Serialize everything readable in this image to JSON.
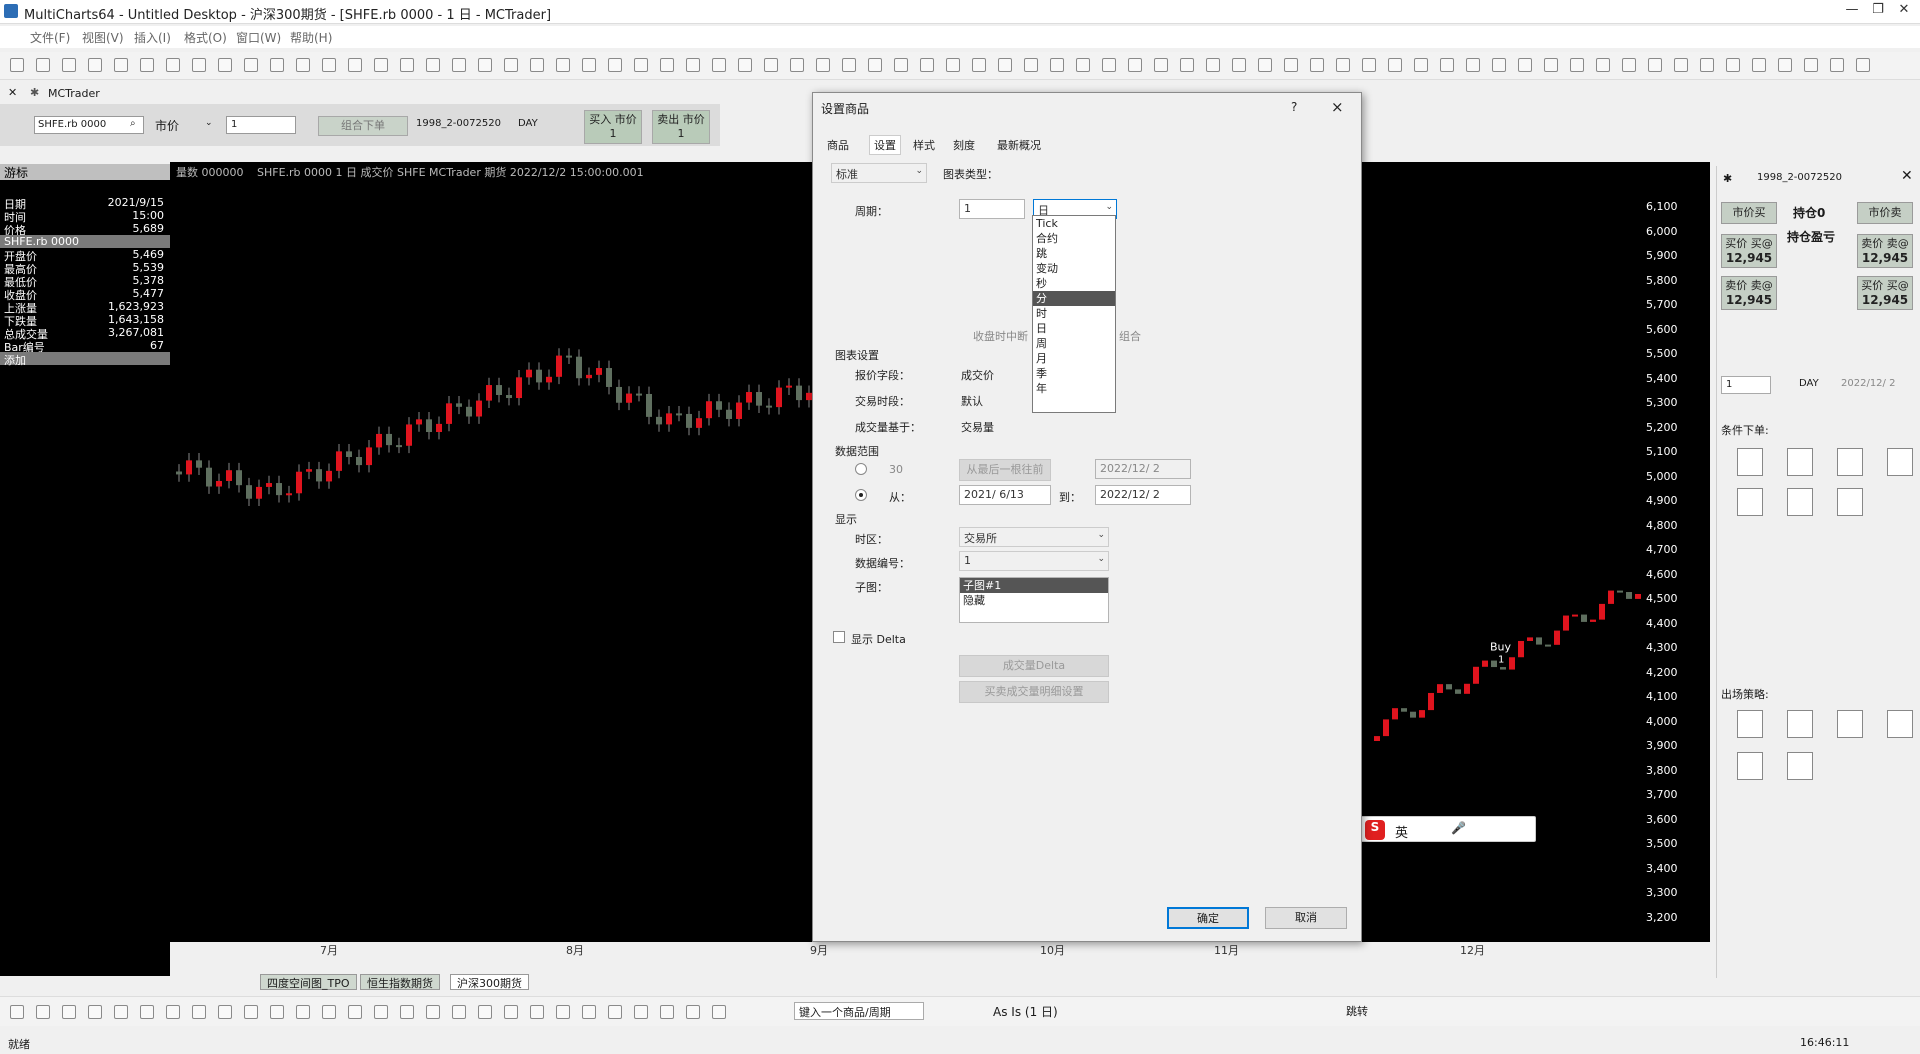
{
  "window": {
    "title": "MultiCharts64 - Untitled Desktop - 沪深300期货 - [SHFE.rb 0000 - 1 日 - MCTrader]"
  },
  "menu": [
    "文件(F)",
    "视图(V)",
    "插入(I)",
    "格式(O)",
    "窗口(W)",
    "帮助(H)"
  ],
  "tab": {
    "label": "MCTrader"
  },
  "trader": {
    "symbol": "SHFE.rb 0000",
    "order_type": "市价",
    "qty": "1",
    "order_btn": "组合下单",
    "account": "1998_2-0072520",
    "tif": "DAY",
    "buy_label": "买入 市价",
    "buy_qty": "1",
    "sell_label": "卖出 市价",
    "sell_qty": "1"
  },
  "left_panel": {
    "title": "游标",
    "rows": [
      {
        "k": "日期",
        "v": "2021/9/15"
      },
      {
        "k": "时间",
        "v": "15:00"
      },
      {
        "k": "价格",
        "v": "5,689"
      }
    ],
    "symbol_row": "SHFE.rb 0000",
    "rows2": [
      {
        "k": "开盘价",
        "v": "5,469"
      },
      {
        "k": "最高价",
        "v": "5,539"
      },
      {
        "k": "最低价",
        "v": "5,378"
      },
      {
        "k": "收盘价",
        "v": "5,477"
      },
      {
        "k": "上涨量",
        "v": "1,623,923"
      },
      {
        "k": "下跌量",
        "v": "1,643,158"
      },
      {
        "k": "总成交量",
        "v": "3,267,081"
      },
      {
        "k": "Bar编号",
        "v": "67"
      }
    ],
    "footer": "添加"
  },
  "chart": {
    "info": "SHFE.rb 0000  1 日  成交价  SHFE  MCTrader  期货  2022/12/2  15:00:00.001",
    "info_vol": "量数 000000",
    "y_ticks": [
      "6,100",
      "6,000",
      "5,900",
      "5,800",
      "5,700",
      "5,600",
      "5,500",
      "5,400",
      "5,300",
      "5,200",
      "5,100",
      "5,000",
      "4,900",
      "4,800",
      "4,700",
      "4,600",
      "4,500",
      "4,400",
      "4,300",
      "4,200",
      "4,100",
      "4,000",
      "3,900",
      "3,800",
      "3,700",
      "3,600",
      "3,500",
      "3,400",
      "3,300",
      "3,200"
    ],
    "x_ticks": [
      "7月",
      "8月",
      "9月",
      "10月",
      "11月",
      "12月"
    ],
    "marker_label": "Buy",
    "marker_qty": "1",
    "up_color": "#e0141e",
    "down_color": "#5f6f5f"
  },
  "bottom_tabs": [
    "四度空间图_TPO",
    "恒生指数期货",
    "沪深300期货"
  ],
  "drawbar": {
    "symbol_input": "键入一个商品/周期",
    "as_is": "As Is (1 日)",
    "jump": "跳转"
  },
  "status": {
    "left": "就绪",
    "time": "16:46:11"
  },
  "dialog": {
    "title": "设置商品",
    "help": "?",
    "close": "×",
    "tabs": [
      "商品",
      "设置",
      "样式",
      "刻度",
      "最新概况"
    ],
    "standard": "标准",
    "chart_type_label": "图表类型：",
    "period_label": "周期：",
    "period_value": "1",
    "period_unit": "日",
    "dropdown_options": [
      "Tick",
      "合约",
      "跳",
      "变动",
      "秒",
      "分",
      "时",
      "日",
      "周",
      "月",
      "季",
      "年"
    ],
    "dropdown_selected": 5,
    "hidden_text_1": "收盘时中断",
    "hidden_text_2": "组合",
    "chart_settings": "图表设置",
    "quote_field_label": "报价字段：",
    "quote_field_value": "成交价",
    "session_label": "交易时段：",
    "session_value": "默认",
    "volume_label": "成交量基于：",
    "volume_value": "交易量",
    "range_title": "数据范围",
    "range_30": "30",
    "range_bars_btn": "从最后一根往前",
    "range_date_dis": "2022/12/ 2",
    "from_label": "从：",
    "from_value": "2021/ 6/13",
    "to_label": "到：",
    "to_value": "2022/12/ 2",
    "display_title": "显示",
    "tz_label": "时区：",
    "tz_value": "交易所",
    "data_no_label": "数据编号：",
    "data_no_value": "1",
    "subchart_label": "子图：",
    "subchart_options": [
      "子图#1",
      "隐藏"
    ],
    "show_delta": "显示 Delta",
    "btn_dis_1": "成交量Delta",
    "btn_dis_2": "买卖成交量明细设置",
    "ok": "确定",
    "cancel": "取消"
  },
  "right_panel": {
    "account": "1998_2-0072520",
    "btn_buy_market": "市价买",
    "btn_sell_market": "市价卖",
    "position_label": "持仓0",
    "pnl_label": "持仓盈亏",
    "buy_price_label": "买价 买@",
    "buy_price": "12,945",
    "sell_price_label": "卖价 卖@",
    "sell_price": "12,945",
    "qty": "1",
    "tif": "DAY",
    "date": "2022/12/ 2",
    "conditional_orders": "条件下单:",
    "exit_strategies": "出场策略:"
  },
  "ime": {
    "lang": "英"
  }
}
